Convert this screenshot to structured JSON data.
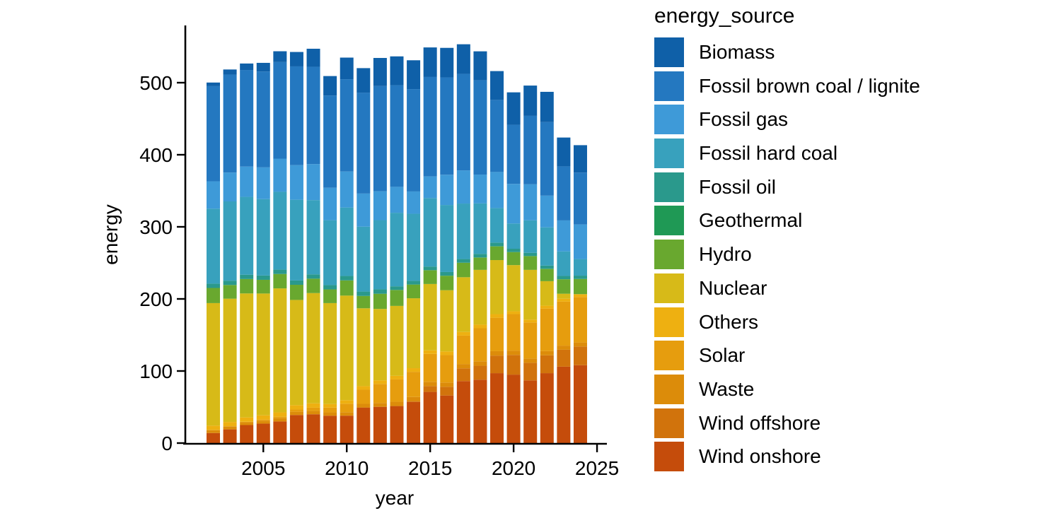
{
  "chart_data": {
    "type": "bar",
    "stacked": true,
    "xlabel": "year",
    "ylabel": "energy",
    "legend_title": "energy_source",
    "legend_position": "right",
    "grid": false,
    "x": [
      2002,
      2003,
      2004,
      2005,
      2006,
      2007,
      2008,
      2009,
      2010,
      2011,
      2012,
      2013,
      2014,
      2015,
      2016,
      2017,
      2018,
      2019,
      2020,
      2021,
      2022,
      2023,
      2024
    ],
    "xticks": [
      2005,
      2010,
      2015,
      2020,
      2025
    ],
    "yticks": [
      0,
      100,
      200,
      300,
      400,
      500
    ],
    "ylim": [
      0,
      580
    ],
    "series": [
      {
        "name": "Biomass",
        "color": "#0f60a8",
        "values": [
          5,
          7,
          9,
          12,
          15,
          20,
          25,
          27,
          30,
          34,
          39,
          40,
          40,
          41,
          41,
          41,
          40,
          40,
          45,
          42,
          42,
          40,
          38
        ]
      },
      {
        "name": "Fossil brown coal / lignite",
        "color": "#2478c0",
        "values": [
          132,
          136,
          134,
          133,
          134,
          137,
          135,
          128,
          128,
          140,
          146,
          141,
          142,
          138,
          135,
          134,
          131,
          100,
          82,
          95,
          102,
          75,
          72
        ]
      },
      {
        "name": "Fossil gas",
        "color": "#3e9ad8",
        "values": [
          38,
          40,
          42,
          44,
          46,
          48,
          50,
          45,
          50,
          46,
          40,
          36,
          31,
          30,
          42,
          46,
          40,
          50,
          55,
          50,
          44,
          43,
          48
        ]
      },
      {
        "name": "Fossil hard coal",
        "color": "#38a1bd",
        "values": [
          104,
          110,
          108,
          106,
          108,
          112,
          103,
          90,
          95,
          90,
          96,
          102,
          93,
          95,
          93,
          77,
          70,
          48,
          35,
          45,
          53,
          34,
          23
        ]
      },
      {
        "name": "Fossil oil",
        "color": "#2a998c",
        "values": [
          6,
          6,
          6,
          6,
          6,
          6,
          6,
          6,
          6,
          6,
          6,
          5,
          5,
          5,
          5,
          5,
          5,
          5,
          4.5,
          4.5,
          4.5,
          4.5,
          4.5
        ]
      },
      {
        "name": "Geothermal",
        "color": "#1f9955",
        "values": [
          0,
          0,
          0,
          0,
          0,
          0,
          0,
          0,
          0.2,
          0.2,
          0.2,
          0.2,
          0.2,
          0.2,
          0.2,
          0.2,
          0.2,
          0.2,
          0.2,
          0.2,
          0.2,
          0.2,
          0.2
        ]
      },
      {
        "name": "Hydro",
        "color": "#69a82f",
        "values": [
          21,
          19,
          20,
          19,
          20,
          21,
          20,
          19,
          21,
          17,
          21,
          22,
          19,
          19,
          20,
          20,
          17,
          19,
          18,
          19,
          17,
          20,
          21
        ]
      },
      {
        "name": "Nuclear",
        "color": "#d7ba18",
        "values": [
          170,
          171,
          172,
          169,
          172,
          146,
          153,
          140,
          145,
          108,
          99,
          97,
          97,
          92,
          85,
          76,
          76,
          75,
          64,
          69,
          34,
          7,
          0
        ]
      },
      {
        "name": "Others",
        "color": "#eeb011",
        "values": [
          6,
          6,
          6,
          6,
          6,
          6,
          6,
          5,
          5,
          5,
          5,
          5,
          5,
          5,
          5,
          5,
          5,
          5,
          4,
          4,
          4,
          4,
          4
        ]
      },
      {
        "name": "Solar",
        "color": "#e69d0e",
        "values": [
          0.2,
          0.3,
          0.6,
          1.3,
          2.2,
          3.1,
          4.4,
          6.6,
          11.7,
          19.6,
          26.4,
          31,
          34.9,
          38.7,
          38.1,
          39.4,
          45.8,
          46.4,
          50.6,
          50,
          59,
          61,
          63
        ]
      },
      {
        "name": "Waste",
        "color": "#dc8c0a",
        "values": [
          4,
          4,
          4,
          4.2,
          4.4,
          4.5,
          4.7,
          4.6,
          4.7,
          4.8,
          5,
          5.4,
          5.6,
          5.8,
          5.9,
          6,
          6.2,
          6.1,
          6,
          5.9,
          5.8,
          5.7,
          5.6
        ]
      },
      {
        "name": "Wind offshore",
        "color": "#d1730c",
        "values": [
          0,
          0,
          0,
          0,
          0,
          0,
          0,
          0,
          0.2,
          0.6,
          0.7,
          0.9,
          1.4,
          8.2,
          12.1,
          17.7,
          19.3,
          24.4,
          27.3,
          24.4,
          24.8,
          23.5,
          26
        ]
      },
      {
        "name": "Wind onshore",
        "color": "#c54c0b",
        "values": [
          14,
          19,
          25,
          27,
          30,
          39,
          40,
          38,
          38,
          49,
          50,
          51,
          57,
          71,
          66,
          86,
          88,
          97,
          95,
          87,
          97,
          106,
          108
        ]
      }
    ]
  }
}
